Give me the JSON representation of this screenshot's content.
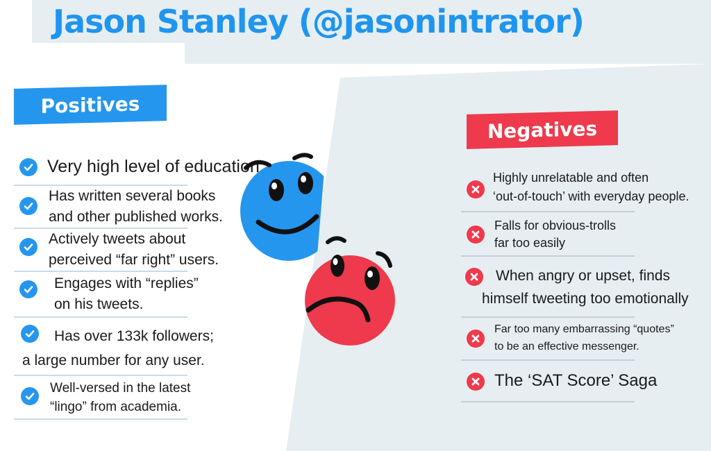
{
  "title": "Jason Stanley (@jasonintrator)",
  "colors": {
    "blue": "#2596ee",
    "red": "#ee3a4c",
    "panel": "#e6eef2"
  },
  "positives": {
    "label": "Positives",
    "items": [
      {
        "line1": "Very high level of education",
        "line2": ""
      },
      {
        "line1": "Has written several books",
        "line2": "and other published works."
      },
      {
        "line1": "Actively tweets about",
        "line2": "perceived “far right” users."
      },
      {
        "line1": "Engages with “replies”",
        "line2": "on his tweets."
      },
      {
        "line1": "Has over 133k followers;",
        "line2": "a large number for any user."
      },
      {
        "line1": "Well-versed in the latest",
        "line2": "“lingo” from academia."
      }
    ]
  },
  "negatives": {
    "label": "Negatives",
    "items": [
      {
        "line1": "Highly unrelatable and often",
        "line2": "‘out-of-touch’ with everyday people."
      },
      {
        "line1": "Falls for obvious-trolls",
        "line2": "far too easily"
      },
      {
        "line1": "When angry or upset, finds",
        "line2": "himself tweeting too emotionally"
      },
      {
        "line1": "Far too many embarrassing “quotes”",
        "line2": "to be an effective messenger."
      },
      {
        "line1": "The ‘SAT Score’ Saga",
        "line2": ""
      }
    ]
  },
  "icons": {
    "happy_face": "smiling-face-icon",
    "sad_face": "frowning-face-icon",
    "check": "check-circle-icon",
    "cross": "x-circle-icon"
  }
}
